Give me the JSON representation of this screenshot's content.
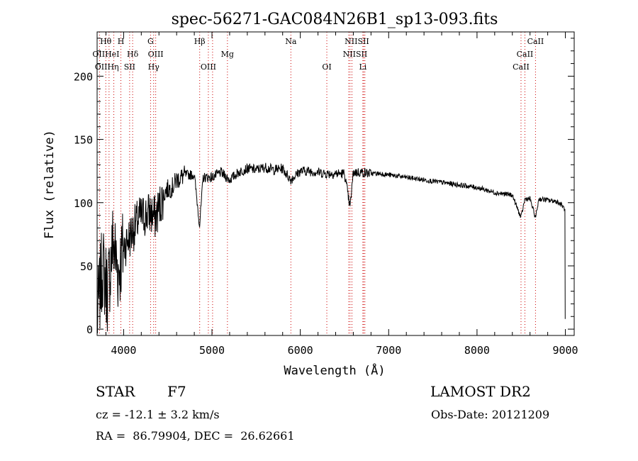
{
  "chart_data": {
    "type": "line",
    "title": "spec-56271-GAC084N26B1_sp13-093.fits",
    "xlabel": "Wavelength (Å)",
    "ylabel": "Flux (relative)",
    "xlim": [
      3700,
      9100
    ],
    "ylim": [
      -5,
      235
    ],
    "xticks": [
      4000,
      5000,
      6000,
      7000,
      8000,
      9000
    ],
    "yticks": [
      0,
      50,
      100,
      150,
      200
    ],
    "series": [
      {
        "name": "spectrum",
        "x": [
          3700,
          3760,
          3820,
          3880,
          3940,
          4000,
          4060,
          4120,
          4180,
          4240,
          4300,
          4360,
          4420,
          4480,
          4550,
          4600,
          4700,
          4800,
          4860,
          4900,
          5000,
          5100,
          5200,
          5300,
          5400,
          5500,
          5600,
          5700,
          5800,
          5890,
          6000,
          6100,
          6200,
          6300,
          6400,
          6500,
          6563,
          6600,
          6700,
          6800,
          6900,
          7000,
          7100,
          7200,
          7300,
          7400,
          7500,
          7600,
          7700,
          7800,
          7900,
          8000,
          8100,
          8200,
          8300,
          8400,
          8498,
          8542,
          8600,
          8662,
          8700,
          8800,
          8900,
          8960,
          8990,
          9000
        ],
        "y": [
          8,
          50,
          30,
          70,
          45,
          65,
          72,
          80,
          88,
          90,
          92,
          88,
          100,
          110,
          112,
          118,
          122,
          122,
          82,
          120,
          120,
          124,
          118,
          124,
          127,
          126,
          128,
          126,
          127,
          118,
          125,
          125,
          124,
          123,
          123,
          123,
          96,
          124,
          124,
          123,
          123,
          122,
          121,
          120,
          119,
          118,
          117,
          116,
          115,
          114,
          113,
          112,
          110,
          108,
          107,
          106,
          88,
          103,
          103,
          88,
          103,
          102,
          101,
          98,
          95,
          8
        ]
      }
    ],
    "lines_top": [
      {
        "label": "Hθ",
        "row": 1,
        "lambda": 3798
      },
      {
        "label": "H",
        "row": 1,
        "lambda": 3969
      },
      {
        "label": "G",
        "row": 1,
        "lambda": 4305
      },
      {
        "label": "Hβ",
        "row": 1,
        "lambda": 4861
      },
      {
        "label": "Na",
        "row": 1,
        "lambda": 5893
      },
      {
        "label": "NIISII",
        "row": 1,
        "lambda": 6640
      },
      {
        "label": "CaII",
        "row": 1,
        "lambda": 8662
      },
      {
        "label": "OIIHeI",
        "row": 2,
        "lambda": 3800
      },
      {
        "label": "Hδ",
        "row": 2,
        "lambda": 4102
      },
      {
        "label": "OIII",
        "row": 2,
        "lambda": 4363
      },
      {
        "label": "Mg",
        "row": 2,
        "lambda": 5175
      },
      {
        "label": "NIISII",
        "row": 2,
        "lambda": 6620
      },
      {
        "label": "CaII",
        "row": 2,
        "lambda": 8542
      },
      {
        "label": "OIIHη",
        "row": 3,
        "lambda": 3810
      },
      {
        "label": "SII",
        "row": 3,
        "lambda": 4068
      },
      {
        "label": "Hγ",
        "row": 3,
        "lambda": 4340
      },
      {
        "label": "OIII",
        "row": 3,
        "lambda": 4959
      },
      {
        "label": "OI",
        "row": 3,
        "lambda": 6300
      },
      {
        "label": "Li",
        "row": 3,
        "lambda": 6708
      },
      {
        "label": "CaII",
        "row": 3,
        "lambda": 8498
      }
    ],
    "marker_lines": [
      3727,
      3798,
      3835,
      3889,
      3969,
      4068,
      4102,
      4305,
      4340,
      4363,
      4861,
      4959,
      5007,
      5175,
      5893,
      6300,
      6548,
      6563,
      6584,
      6708,
      6717,
      6731,
      8498,
      8542,
      8662
    ],
    "marker_color": "#cc0000"
  },
  "info": {
    "object_class": "STAR",
    "subclass": "F7",
    "survey": "LAMOST DR2",
    "cz": "cz = -12.1 ± 3.2 km/s",
    "obs_date": "Obs-Date: 20121209",
    "coords": "RA =  86.79904, DEC =  26.62661"
  }
}
